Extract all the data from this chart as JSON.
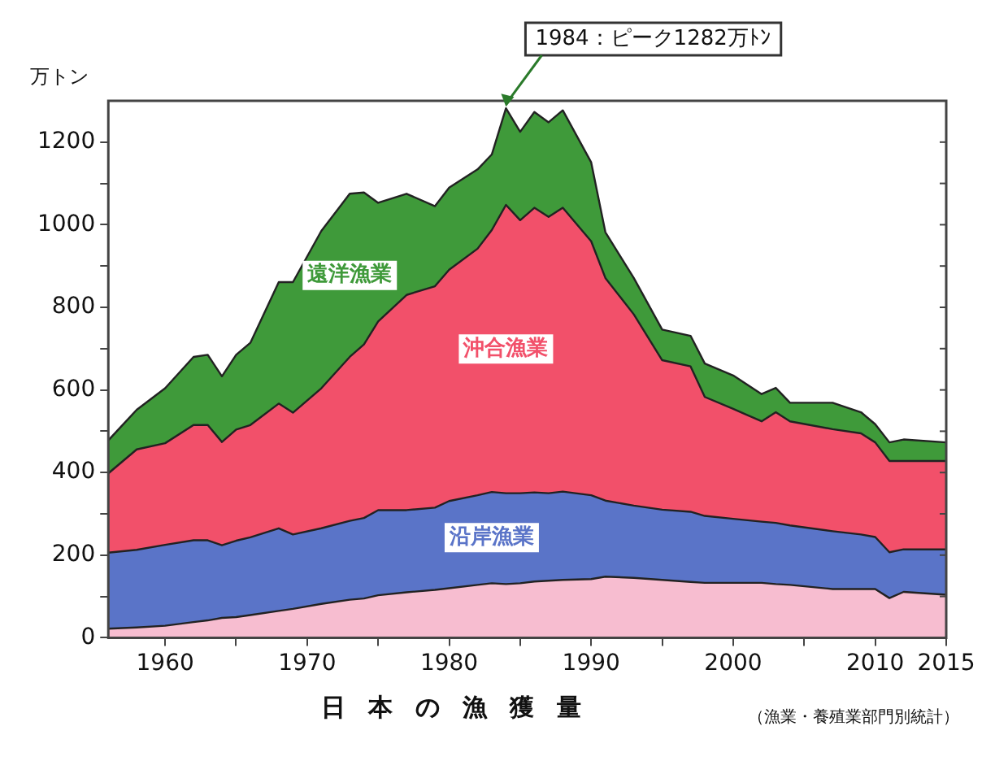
{
  "chart_data": {
    "type": "area",
    "stacked": true,
    "title": "日本の漁獲量",
    "ylabel": "万トン",
    "x": [
      1956,
      1958,
      1960,
      1962,
      1963,
      1964,
      1965,
      1966,
      1968,
      1969,
      1971,
      1973,
      1974,
      1975,
      1977,
      1979,
      1980,
      1982,
      1983,
      1984,
      1985,
      1986,
      1987,
      1988,
      1990,
      1991,
      1993,
      1995,
      1997,
      1998,
      2000,
      2002,
      2003,
      2004,
      2007,
      2009,
      2010,
      2011,
      2012,
      2015
    ],
    "series": [
      {
        "color": "#f7bdd0",
        "values": [
          22,
          25,
          29,
          38,
          42,
          48,
          50,
          55,
          65,
          70,
          82,
          92,
          95,
          103,
          110,
          116,
          120,
          128,
          132,
          130,
          132,
          136,
          138,
          140,
          142,
          148,
          145,
          140,
          135,
          133,
          133,
          133,
          130,
          128,
          118,
          118,
          118,
          96,
          111,
          104
        ]
      },
      {
        "name": "沿岸漁業",
        "color": "#5a74c8",
        "values": [
          184,
          188,
          196,
          198,
          194,
          176,
          185,
          188,
          200,
          180,
          183,
          191,
          195,
          206,
          199,
          199,
          211,
          217,
          221,
          220,
          218,
          216,
          212,
          214,
          203,
          184,
          175,
          170,
          170,
          162,
          155,
          148,
          148,
          144,
          140,
          132,
          126,
          111,
          103,
          110
        ]
      },
      {
        "name": "沖合漁業",
        "color": "#f2506a",
        "values": [
          192,
          243,
          246,
          279,
          279,
          250,
          269,
          272,
          302,
          295,
          339,
          397,
          420,
          457,
          521,
          536,
          560,
          597,
          634,
          698,
          661,
          689,
          669,
          687,
          615,
          539,
          463,
          362,
          352,
          288,
          266,
          243,
          268,
          252,
          247,
          245,
          229,
          221,
          214,
          214
        ]
      },
      {
        "name": "遠洋漁業",
        "color": "#3f9a3a",
        "values": [
          80,
          96,
          133,
          165,
          170,
          159,
          181,
          199,
          294,
          316,
          381,
          395,
          368,
          287,
          245,
          194,
          199,
          192,
          183,
          234,
          214,
          232,
          229,
          236,
          191,
          111,
          88,
          74,
          74,
          81,
          81,
          66,
          59,
          45,
          64,
          51,
          44,
          45,
          52,
          45
        ]
      }
    ],
    "xlim": [
      1956,
      2015
    ],
    "xticks": [
      1960,
      {
        "value": 1965,
        "label": null
      },
      1970,
      {
        "value": 1975,
        "label": null
      },
      1980,
      {
        "value": 1985,
        "label": null
      },
      1990,
      {
        "value": 1995,
        "label": null
      },
      2000,
      {
        "value": 2005,
        "label": null
      },
      2010,
      2015
    ],
    "ylim": [
      0,
      1300
    ],
    "yticks": [
      0,
      {
        "value": 100,
        "label": null
      },
      200,
      {
        "value": 300,
        "label": null
      },
      400,
      {
        "value": 500,
        "label": null
      },
      600,
      {
        "value": 700,
        "label": null
      },
      800,
      {
        "value": 900,
        "label": null
      },
      1000,
      {
        "value": 1100,
        "label": null
      },
      1200
    ],
    "grid": false,
    "legend": false,
    "marker": "none",
    "line_style": "solid",
    "annotations": [
      {
        "text": "1984：ピーク1282万ﾄﾝ",
        "x": 1984,
        "y": 1282
      },
      "（漁業・養殖業部門別統計）"
    ]
  }
}
